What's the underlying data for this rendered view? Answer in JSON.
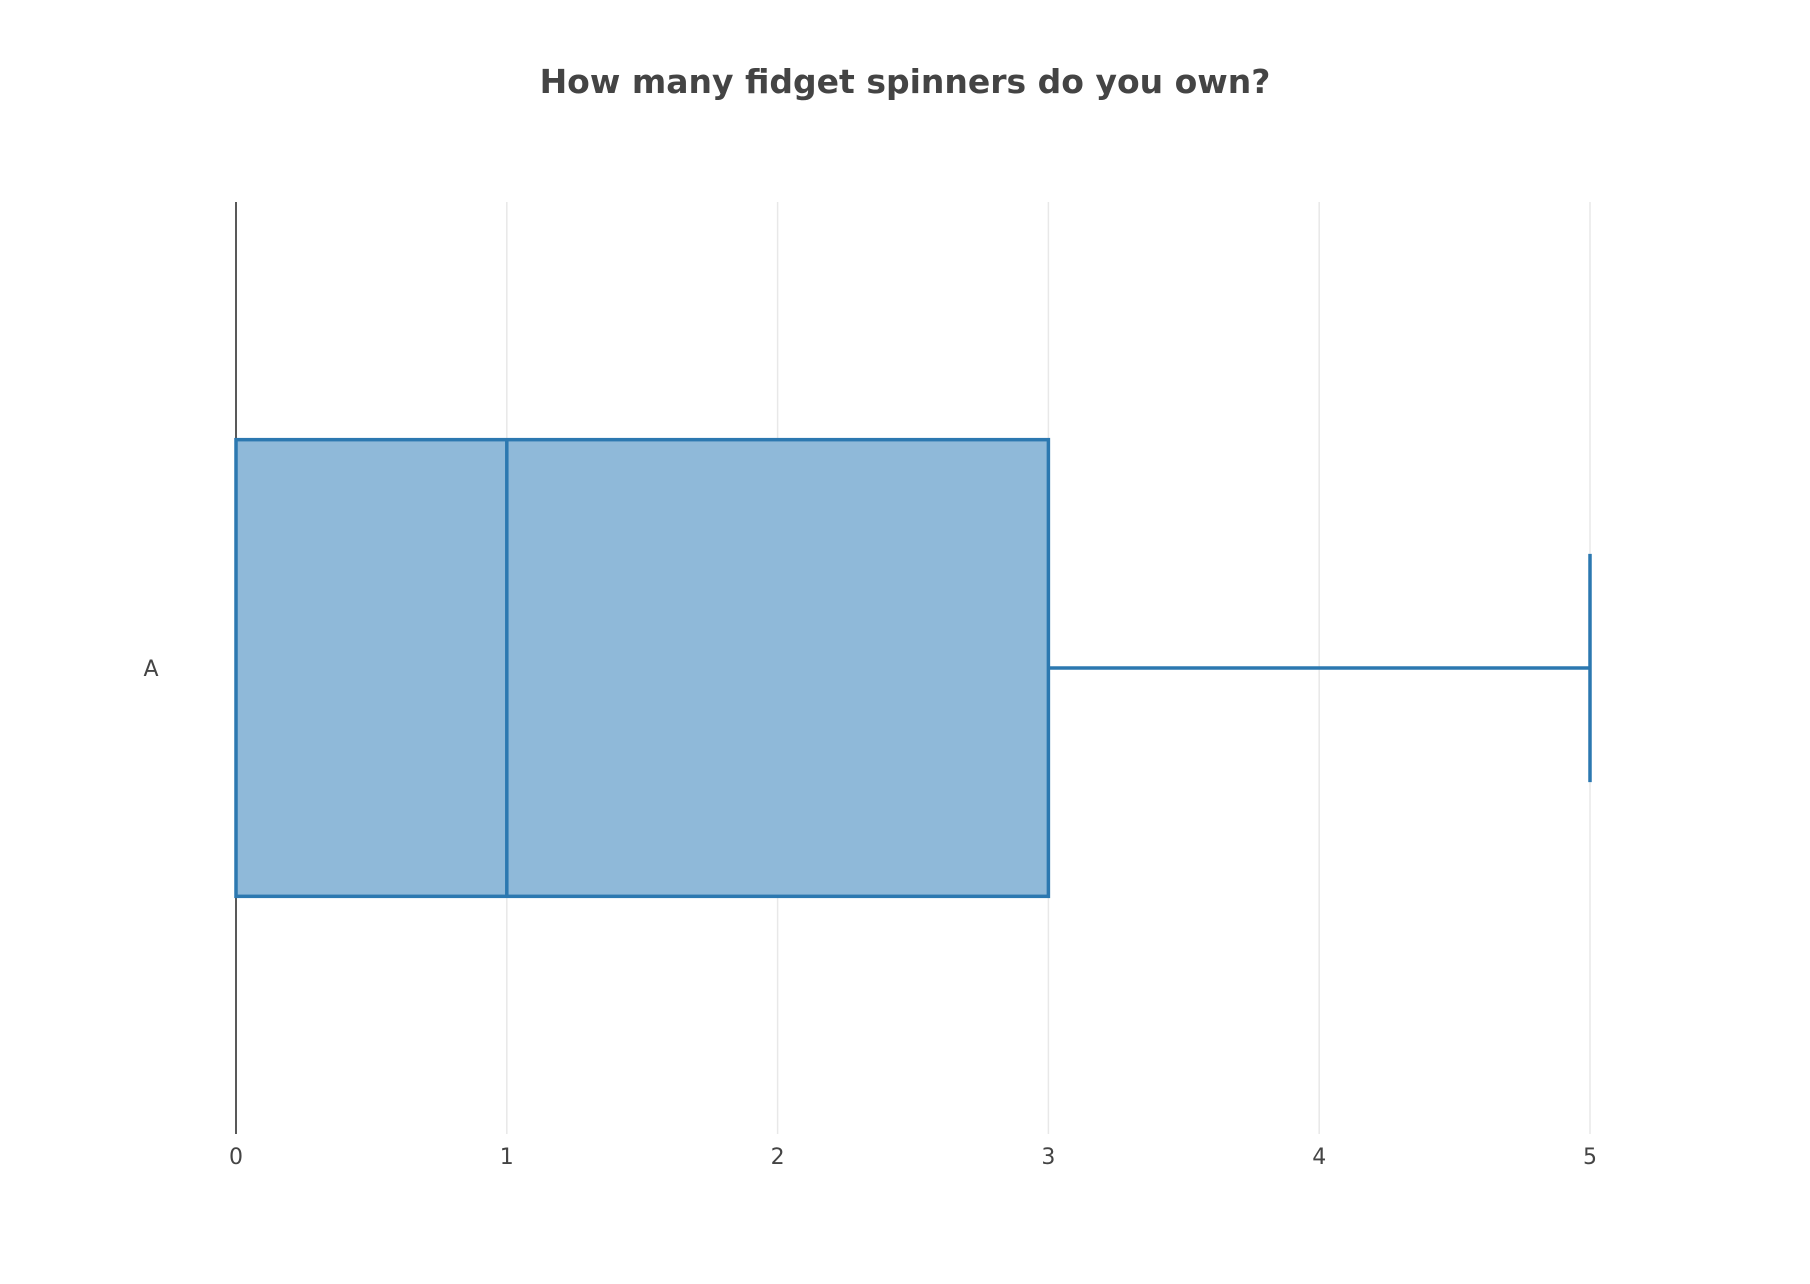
{
  "chart_data": {
    "type": "box",
    "title": "How many fidget spinners do you own?",
    "orientation": "horizontal",
    "categories": [
      "A"
    ],
    "series": [
      {
        "category": "A",
        "min": 0,
        "q1": 0,
        "median": 1,
        "q3": 3,
        "max": 5
      }
    ],
    "x_ticks": [
      "0",
      "1",
      "2",
      "3",
      "4",
      "5"
    ],
    "xlim": [
      0,
      5
    ],
    "xlabel": "",
    "ylabel": "",
    "grid": true,
    "legend": false,
    "colors": {
      "box_fill": "#8fb9d9",
      "box_line": "#2c78b0",
      "grid": "#e8e8e8",
      "zero_line": "#222222",
      "text": "#444444"
    }
  }
}
